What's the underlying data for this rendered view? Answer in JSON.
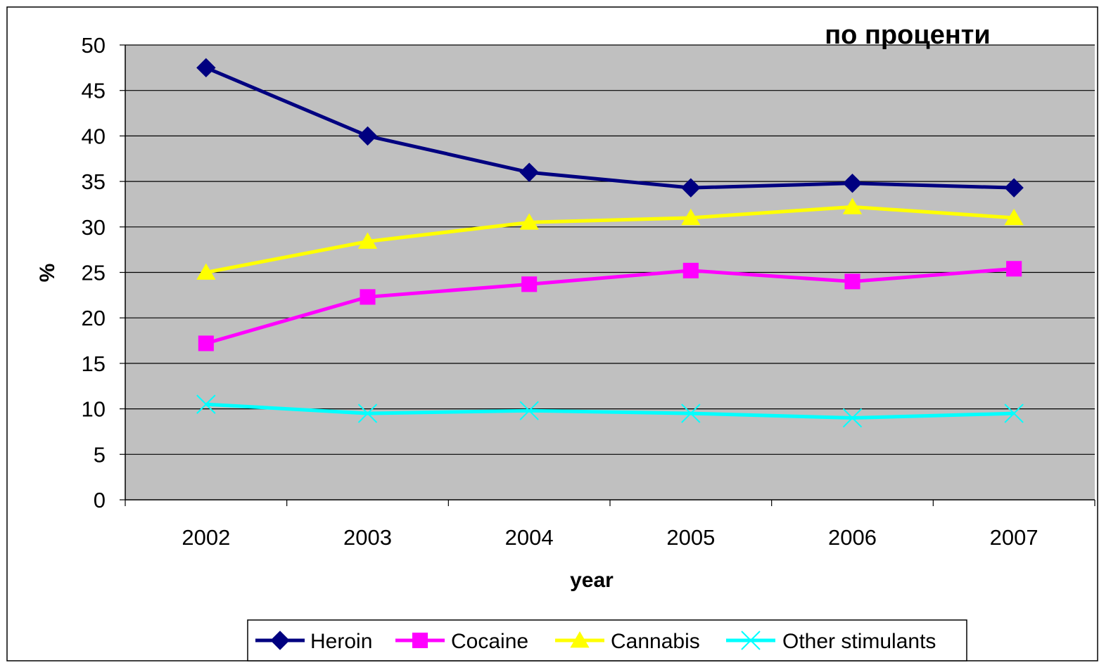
{
  "chart_data": {
    "type": "line",
    "title": "по проценти",
    "xlabel": "year",
    "ylabel": "%",
    "categories": [
      "2002",
      "2003",
      "2004",
      "2005",
      "2006",
      "2007"
    ],
    "ylim": [
      0,
      50
    ],
    "yticks": [
      0,
      5,
      10,
      15,
      20,
      25,
      30,
      35,
      40,
      45,
      50
    ],
    "grid": true,
    "plot_background": "#c0c0c0",
    "legend_position": "bottom",
    "series": [
      {
        "name": "Heroin",
        "values": [
          47.5,
          40.0,
          36.0,
          34.3,
          34.8,
          34.3
        ],
        "color": "#000080",
        "marker": "diamond"
      },
      {
        "name": "Cocaine",
        "values": [
          17.2,
          22.3,
          23.7,
          25.2,
          24.0,
          25.4
        ],
        "color": "#ff00ff",
        "marker": "square"
      },
      {
        "name": "Cannabis",
        "values": [
          25.0,
          28.4,
          30.5,
          31.0,
          32.2,
          31.0
        ],
        "color": "#ffff00",
        "marker": "triangle"
      },
      {
        "name": "Other stimulants",
        "values": [
          10.5,
          9.5,
          9.8,
          9.5,
          9.0,
          9.5
        ],
        "color": "#00ffff",
        "marker": "x"
      }
    ]
  }
}
